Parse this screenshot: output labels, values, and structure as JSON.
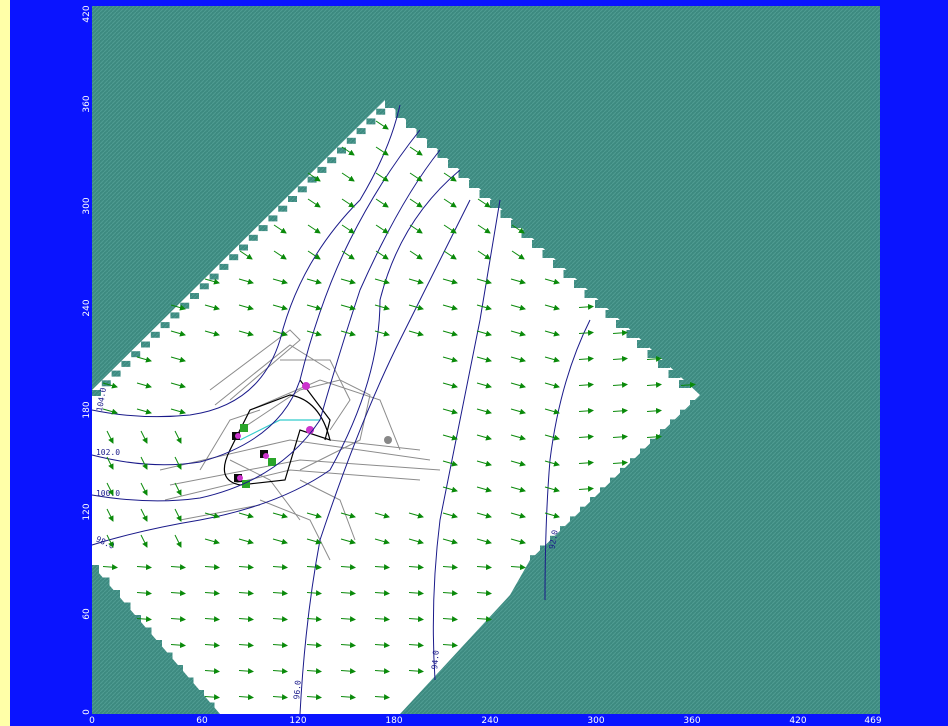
{
  "colors": {
    "frame": "#0a14ff",
    "margin": "#ffffa8",
    "inactive_cells": "#3d8a80",
    "active_cells": "#ffffff",
    "contour": "#1a1a8a",
    "vectors": "#0a8a0a",
    "site_lines": "#8c8c8c",
    "wells": "#cc33cc"
  },
  "axes": {
    "x_ticks": [
      "0",
      "60",
      "120",
      "180",
      "240",
      "300",
      "360",
      "420",
      "469"
    ],
    "y_ticks": [
      "0",
      "60",
      "120",
      "180",
      "240",
      "300",
      "360",
      "420"
    ]
  },
  "contours": [
    {
      "label": "104.0"
    },
    {
      "label": "102.0"
    },
    {
      "label": "100.0"
    },
    {
      "label": "98.0"
    },
    {
      "label": "96.0"
    },
    {
      "label": "94.0"
    },
    {
      "label": "92.0"
    }
  ],
  "icons": {
    "well": "well-marker-icon",
    "arrow": "flow-arrow-icon"
  }
}
